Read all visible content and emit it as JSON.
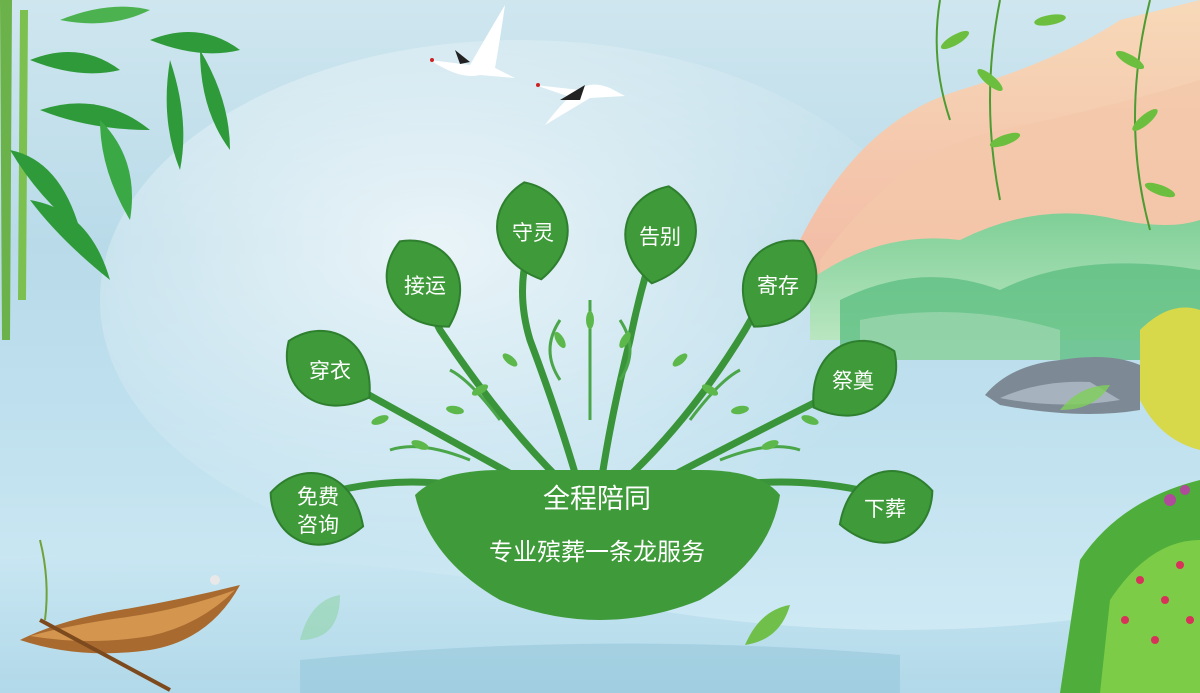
{
  "center": {
    "title": "全程陪同",
    "subtitle": "专业殡葬一条龙服务"
  },
  "services": [
    {
      "id": "consult",
      "lines": [
        "免费",
        "咨询"
      ]
    },
    {
      "id": "dress",
      "lines": [
        "穿衣"
      ]
    },
    {
      "id": "pickup",
      "lines": [
        "接运"
      ]
    },
    {
      "id": "vigil",
      "lines": [
        "守灵"
      ]
    },
    {
      "id": "farewell",
      "lines": [
        "告别"
      ]
    },
    {
      "id": "storage",
      "lines": [
        "寄存"
      ]
    },
    {
      "id": "memorial",
      "lines": [
        "祭奠"
      ]
    },
    {
      "id": "burial",
      "lines": [
        "下葬"
      ]
    }
  ],
  "colors": {
    "leaf": "#3f9a3a",
    "leaf_dark": "#2e7f2e",
    "sky": "#bfe0ee"
  }
}
